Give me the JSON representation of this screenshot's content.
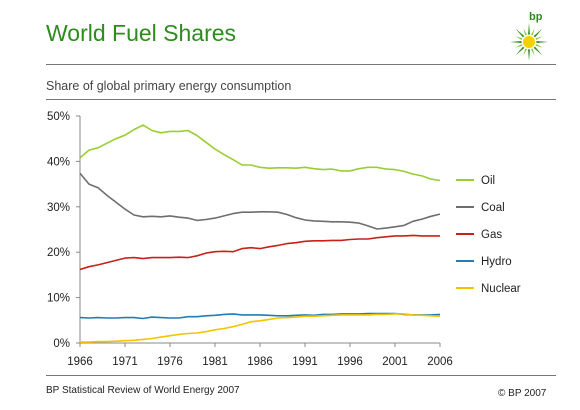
{
  "header": {
    "title": "World Fuel Shares",
    "subtitle": "Share of global primary energy consumption",
    "logo_text": "bp"
  },
  "footer": {
    "source": "BP Statistical Review of World Energy 2007",
    "copyright": "© BP 2007"
  },
  "colors": {
    "title": "#2e8b1e",
    "logo_green": "#2e8b1e",
    "logo_yellow": "#f5d000"
  },
  "chart_data": {
    "type": "line",
    "title": "",
    "xlabel": "",
    "ylabel": "",
    "xlim": [
      1966,
      2006
    ],
    "ylim": [
      0,
      50
    ],
    "grid": false,
    "legend_position": "right",
    "xticks": [
      "1966",
      "1971",
      "1976",
      "1981",
      "1986",
      "1991",
      "1996",
      "2001",
      "2006"
    ],
    "yticks": [
      "0%",
      "10%",
      "20%",
      "30%",
      "40%",
      "50%"
    ],
    "x": [
      1966,
      1967,
      1968,
      1969,
      1970,
      1971,
      1972,
      1973,
      1974,
      1975,
      1976,
      1977,
      1978,
      1979,
      1980,
      1981,
      1982,
      1983,
      1984,
      1985,
      1986,
      1987,
      1988,
      1989,
      1990,
      1991,
      1992,
      1993,
      1994,
      1995,
      1996,
      1997,
      1998,
      1999,
      2000,
      2001,
      2002,
      2003,
      2004,
      2005,
      2006
    ],
    "series": [
      {
        "name": "Oil",
        "color": "#9acd32",
        "values": [
          40.8,
          42.5,
          43,
          44,
          45,
          45.8,
          47,
          48,
          46.8,
          46.3,
          46.6,
          46.6,
          46.8,
          45.7,
          44.2,
          42.7,
          41.5,
          40.4,
          39.2,
          39.2,
          38.7,
          38.5,
          38.6,
          38.6,
          38.5,
          38.7,
          38.4,
          38.2,
          38.3,
          37.9,
          37.9,
          38.4,
          38.7,
          38.7,
          38.3,
          38.2,
          37.8,
          37.2,
          36.8,
          36.1,
          35.8
        ]
      },
      {
        "name": "Coal",
        "color": "#6e6e6e",
        "values": [
          37.4,
          35,
          34.2,
          32.5,
          31,
          29.5,
          28.2,
          27.8,
          27.9,
          27.8,
          28,
          27.7,
          27.5,
          27,
          27.2,
          27.5,
          28,
          28.5,
          28.8,
          28.8,
          28.9,
          28.9,
          28.8,
          28.3,
          27.6,
          27.1,
          26.9,
          26.8,
          26.7,
          26.7,
          26.6,
          26.4,
          25.8,
          25.1,
          25.3,
          25.6,
          25.9,
          26.8,
          27.3,
          27.9,
          28.4
        ]
      },
      {
        "name": "Gas",
        "color": "#c8201a",
        "values": [
          16.2,
          16.8,
          17.2,
          17.7,
          18.2,
          18.7,
          18.8,
          18.6,
          18.8,
          18.8,
          18.8,
          18.9,
          18.8,
          19.2,
          19.8,
          20.1,
          20.2,
          20.1,
          20.8,
          21,
          20.8,
          21.2,
          21.5,
          21.9,
          22.1,
          22.4,
          22.5,
          22.5,
          22.6,
          22.6,
          22.8,
          22.9,
          22.9,
          23.2,
          23.4,
          23.6,
          23.6,
          23.7,
          23.6,
          23.6,
          23.6
        ]
      },
      {
        "name": "Hydro",
        "color": "#1f7fb4",
        "values": [
          5.6,
          5.5,
          5.6,
          5.5,
          5.5,
          5.6,
          5.6,
          5.4,
          5.7,
          5.6,
          5.5,
          5.5,
          5.8,
          5.8,
          6,
          6.1,
          6.3,
          6.4,
          6.2,
          6.2,
          6.2,
          6.1,
          6,
          6,
          6.1,
          6.2,
          6.1,
          6.3,
          6.3,
          6.4,
          6.4,
          6.4,
          6.5,
          6.5,
          6.5,
          6.5,
          6.3,
          6.2,
          6.2,
          6.2,
          6.3
        ]
      },
      {
        "name": "Nuclear",
        "color": "#f5c400",
        "values": [
          0.2,
          0.2,
          0.3,
          0.3,
          0.4,
          0.5,
          0.6,
          0.8,
          1,
          1.3,
          1.6,
          1.9,
          2.1,
          2.2,
          2.5,
          2.9,
          3.2,
          3.6,
          4.1,
          4.7,
          4.9,
          5.2,
          5.5,
          5.6,
          5.7,
          5.9,
          5.9,
          6,
          6.1,
          6.2,
          6.2,
          6.2,
          6.2,
          6.3,
          6.3,
          6.4,
          6.4,
          6.2,
          6.1,
          6,
          5.9
        ]
      }
    ]
  }
}
